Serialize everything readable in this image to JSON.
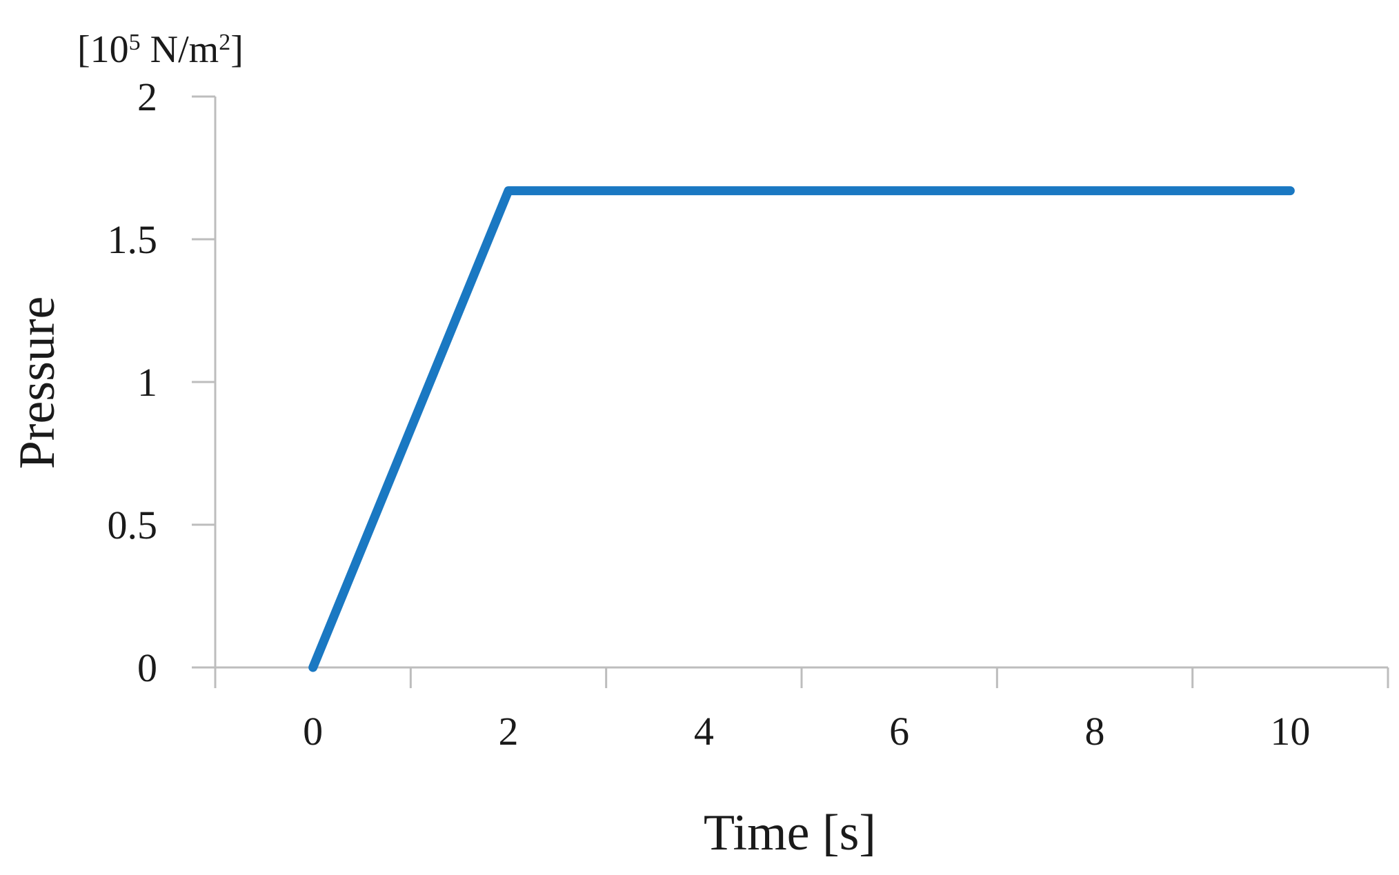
{
  "chart_data": {
    "type": "line",
    "title": "",
    "xlabel": "Time [s]",
    "ylabel": "Pressure",
    "ylabel_unit": {
      "prefix": "[10",
      "exp": "5",
      "mid": " N/m",
      "exp2": "2",
      "suffix": "]"
    },
    "xlim": [
      -1,
      11
    ],
    "ylim": [
      0,
      2
    ],
    "x_ticks": [
      0,
      2,
      4,
      6,
      8,
      10
    ],
    "x_tick_labels": [
      "0",
      "2",
      "4",
      "6",
      "8",
      "10"
    ],
    "y_ticks": [
      0,
      0.5,
      1,
      1.5,
      2
    ],
    "y_tick_labels": [
      "0",
      "0.5",
      "1",
      "1.5",
      "2"
    ],
    "grid": false,
    "legend": "none",
    "series": [
      {
        "color": "#1a78c2",
        "x": [
          0,
          2,
          10
        ],
        "y": [
          0,
          1.67,
          1.67
        ]
      }
    ]
  }
}
